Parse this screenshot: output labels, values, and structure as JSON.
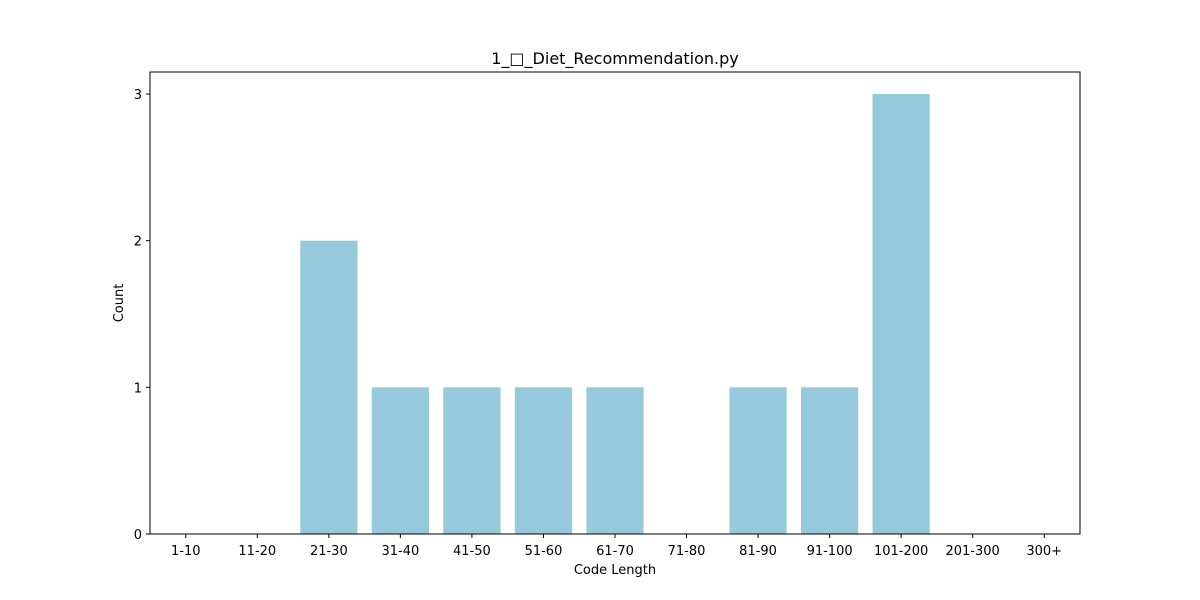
{
  "chart_data": {
    "type": "bar",
    "title": "1_□_Diet_Recommendation.py",
    "xlabel": "Code Length",
    "ylabel": "Count",
    "categories": [
      "1-10",
      "11-20",
      "21-30",
      "31-40",
      "41-50",
      "51-60",
      "61-70",
      "71-80",
      "81-90",
      "91-100",
      "101-200",
      "201-300",
      "300+"
    ],
    "values": [
      0,
      0,
      2,
      1,
      1,
      1,
      1,
      0,
      1,
      1,
      3,
      0,
      0
    ],
    "ylim": [
      0,
      3.15
    ],
    "yticks": [
      0,
      1,
      2,
      3
    ],
    "bar_color": "#96c9dc",
    "grid": false,
    "legend": "none"
  }
}
